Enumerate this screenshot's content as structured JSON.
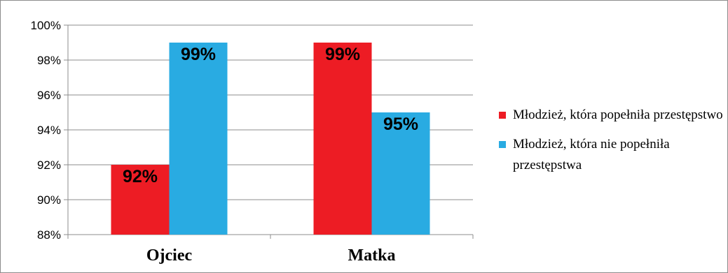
{
  "chart_data": {
    "type": "bar",
    "categories": [
      "Ojciec",
      "Matka"
    ],
    "series": [
      {
        "name": "Młodzież, która popełniła przestępstwo",
        "values": [
          92,
          99
        ],
        "color": "#ed1c24",
        "labels": [
          "92%",
          "99%"
        ]
      },
      {
        "name": "Młodzież, która nie popełniła przestępstwa",
        "values": [
          99,
          95
        ],
        "color": "#29abe2",
        "labels": [
          "99%",
          "95%"
        ]
      }
    ],
    "ylim": [
      88,
      100
    ],
    "yticks": [
      88,
      90,
      92,
      94,
      96,
      98,
      100
    ],
    "ytick_labels": [
      "88%",
      "90%",
      "92%",
      "94%",
      "96%",
      "98%",
      "100%"
    ],
    "grid": true,
    "legend_position": "right",
    "title": "",
    "xlabel": "",
    "ylabel": ""
  }
}
